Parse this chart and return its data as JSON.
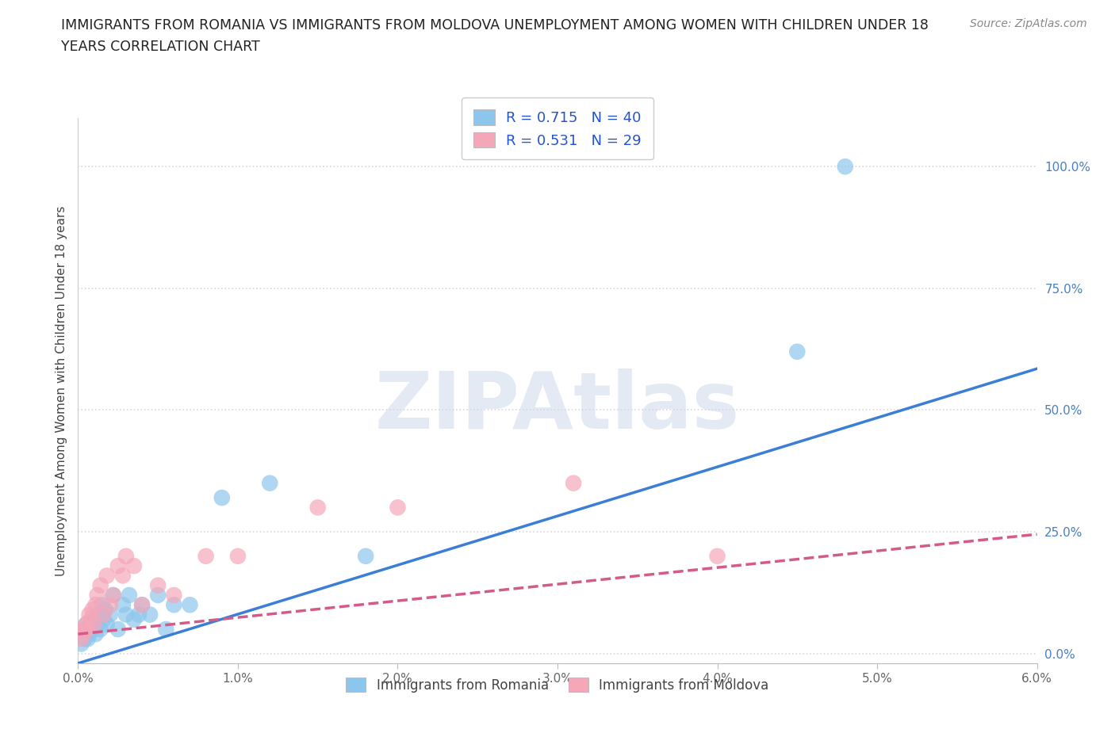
{
  "title": "IMMIGRANTS FROM ROMANIA VS IMMIGRANTS FROM MOLDOVA UNEMPLOYMENT AMONG WOMEN WITH CHILDREN UNDER 18\nYEARS CORRELATION CHART",
  "source": "Source: ZipAtlas.com",
  "ylabel": "Unemployment Among Women with Children Under 18 years",
  "xlim": [
    0.0,
    0.06
  ],
  "ylim": [
    -0.02,
    1.1
  ],
  "xticks": [
    0.0,
    0.01,
    0.02,
    0.03,
    0.04,
    0.05,
    0.06
  ],
  "xtick_labels": [
    "0.0%",
    "1.0%",
    "2.0%",
    "3.0%",
    "4.0%",
    "5.0%",
    "6.0%"
  ],
  "yticks": [
    0.0,
    0.25,
    0.5,
    0.75,
    1.0
  ],
  "ytick_labels": [
    "0.0%",
    "25.0%",
    "50.0%",
    "75.0%",
    "100.0%"
  ],
  "romania_color": "#8dc6ed",
  "moldova_color": "#f4a7b9",
  "romania_line_color": "#3a7fd5",
  "moldova_line_color": "#d45a8a",
  "R_romania": 0.715,
  "N_romania": 40,
  "R_moldova": 0.531,
  "N_moldova": 29,
  "legend_label_romania": "Immigrants from Romania",
  "legend_label_moldova": "Immigrants from Moldova",
  "watermark": "ZIPAtlas",
  "background_color": "#ffffff",
  "grid_color": "#d8d8d8",
  "romania_x": [
    0.0002,
    0.0003,
    0.0004,
    0.0004,
    0.0005,
    0.0005,
    0.0006,
    0.0006,
    0.0007,
    0.0008,
    0.0009,
    0.001,
    0.001,
    0.0011,
    0.0012,
    0.0013,
    0.0014,
    0.0015,
    0.0016,
    0.0017,
    0.0018,
    0.002,
    0.0022,
    0.0025,
    0.0028,
    0.003,
    0.0032,
    0.0035,
    0.0038,
    0.004,
    0.0045,
    0.005,
    0.0055,
    0.006,
    0.007,
    0.009,
    0.012,
    0.018,
    0.045,
    0.048
  ],
  "romania_y": [
    0.02,
    0.04,
    0.03,
    0.05,
    0.04,
    0.06,
    0.03,
    0.05,
    0.04,
    0.06,
    0.05,
    0.07,
    0.06,
    0.04,
    0.06,
    0.08,
    0.05,
    0.1,
    0.07,
    0.09,
    0.06,
    0.08,
    0.12,
    0.05,
    0.1,
    0.08,
    0.12,
    0.07,
    0.08,
    0.1,
    0.08,
    0.12,
    0.05,
    0.1,
    0.1,
    0.32,
    0.35,
    0.2,
    0.62,
    1.0
  ],
  "moldova_x": [
    0.0002,
    0.0003,
    0.0004,
    0.0005,
    0.0006,
    0.0007,
    0.0008,
    0.0009,
    0.001,
    0.0011,
    0.0012,
    0.0014,
    0.0016,
    0.0018,
    0.002,
    0.0022,
    0.0025,
    0.0028,
    0.003,
    0.0035,
    0.004,
    0.005,
    0.006,
    0.008,
    0.01,
    0.015,
    0.02,
    0.031,
    0.04
  ],
  "moldova_y": [
    0.03,
    0.04,
    0.05,
    0.06,
    0.05,
    0.08,
    0.07,
    0.09,
    0.06,
    0.1,
    0.12,
    0.14,
    0.08,
    0.16,
    0.1,
    0.12,
    0.18,
    0.16,
    0.2,
    0.18,
    0.1,
    0.14,
    0.12,
    0.2,
    0.2,
    0.3,
    0.3,
    0.35,
    0.2
  ],
  "romania_line_x0": 0.0,
  "romania_line_y0": -0.02,
  "romania_line_x1": 0.06,
  "romania_line_y1": 0.585,
  "moldova_line_x0": 0.0,
  "moldova_line_y0": 0.04,
  "moldova_line_x1": 0.06,
  "moldova_line_y1": 0.245
}
